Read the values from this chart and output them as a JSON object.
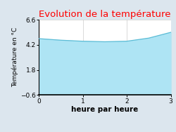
{
  "title": "Evolution de la température",
  "xlabel": "heure par heure",
  "ylabel": "Température en °C",
  "xlim": [
    0,
    3
  ],
  "ylim": [
    -0.6,
    6.6
  ],
  "yticks": [
    -0.6,
    1.8,
    4.2,
    6.6
  ],
  "xticks": [
    0,
    1,
    2,
    3
  ],
  "x": [
    0,
    0.5,
    1.0,
    1.5,
    2.0,
    2.5,
    3.0
  ],
  "y": [
    4.8,
    4.65,
    4.55,
    4.5,
    4.55,
    4.85,
    5.4
  ],
  "fill_color": "#aee4f4",
  "line_color": "#5bbcd6",
  "fill_alpha": 1.0,
  "background_color": "#dce6ee",
  "plot_bg_color": "#ffffff",
  "title_color": "#ff0000",
  "title_fontsize": 9.5,
  "xlabel_fontsize": 7.5,
  "ylabel_fontsize": 6.5,
  "tick_fontsize": 6.5,
  "grid_color": "#cccccc"
}
